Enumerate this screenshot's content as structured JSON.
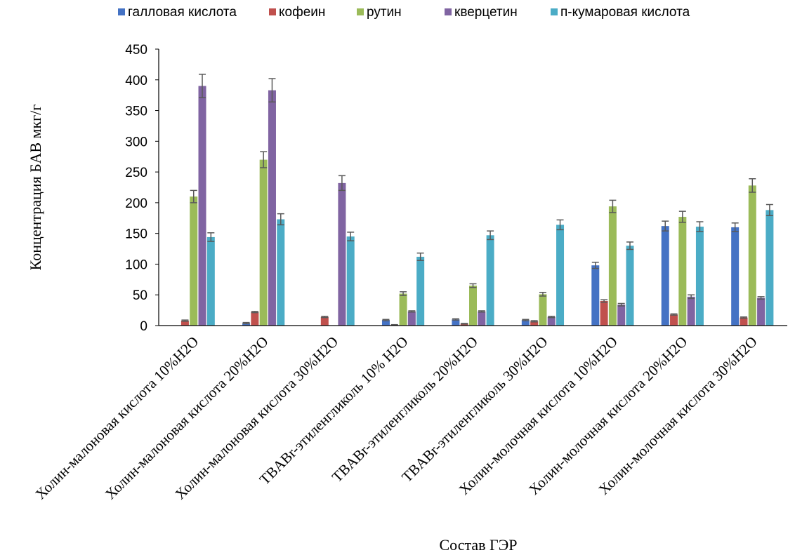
{
  "chart_data": {
    "type": "bar",
    "title": "",
    "xlabel": "Состав ГЭР",
    "ylabel": "Концентрация БАВ мкг/г",
    "ylim": [
      0,
      450
    ],
    "yticks": [
      0,
      50,
      100,
      150,
      200,
      250,
      300,
      350,
      400,
      450
    ],
    "grid": false,
    "legend_position": "top",
    "categories": [
      "Холин-малоновая кислота 10%H2O",
      "Холин-малоновая кислота 20%H2O",
      "Холин-малоновая кислота 30%H2O",
      "TBABr-этиленгликоль 10% H2O",
      "TBABr-этиленгликоль 20%H2O",
      "TBABr-этиленгликоль 30%H2O",
      "Холин-молочная кислота 10%H2O",
      "Холин-молочная кислота 20%H2O",
      "Холин-молочная кислота 30%H2O"
    ],
    "series": [
      {
        "name": "галловая кислота",
        "color": "#4472C4",
        "values": [
          0,
          4,
          0,
          9,
          10,
          9,
          98,
          162,
          160
        ],
        "errors": [
          0,
          1,
          0,
          1,
          1,
          1,
          5,
          8,
          7
        ]
      },
      {
        "name": "кофеин",
        "color": "#C0504D",
        "values": [
          8,
          22,
          14,
          1,
          3,
          7,
          40,
          18,
          13
        ],
        "errors": [
          1,
          1,
          1,
          0.5,
          0.5,
          1,
          2,
          1,
          1
        ]
      },
      {
        "name": "рутин",
        "color": "#9BBB59",
        "values": [
          210,
          270,
          0,
          52,
          65,
          51,
          194,
          177,
          228
        ],
        "errors": [
          10,
          13,
          0,
          3,
          3,
          3,
          10,
          9,
          11
        ]
      },
      {
        "name": "кверцетин",
        "color": "#8064A2",
        "values": [
          390,
          383,
          232,
          23,
          23,
          14,
          34,
          47,
          45
        ],
        "errors": [
          19,
          19,
          12,
          1,
          1,
          1,
          2,
          3,
          2
        ]
      },
      {
        "name": "п-кумаровая кислота",
        "color": "#4BACC6",
        "values": [
          144,
          173,
          145,
          112,
          147,
          164,
          130,
          161,
          188
        ],
        "errors": [
          7,
          9,
          7,
          6,
          7,
          8,
          6,
          8,
          9
        ]
      }
    ]
  }
}
